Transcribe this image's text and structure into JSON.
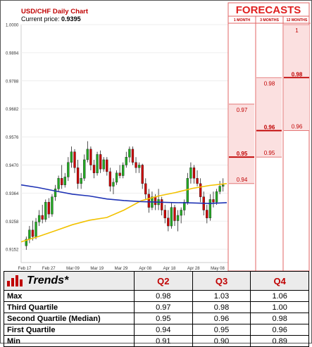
{
  "chart_data": {
    "type": "candlestick",
    "title": "USD/CHF Daily Chart",
    "current_price_label": "Current price:",
    "current_price": "0.9395",
    "y_ticks": [
      "1.0000",
      "0.9894",
      "0.9788",
      "0.9682",
      "0.9576",
      "0.9470",
      "0.9364",
      "0.9258",
      "0.9152"
    ],
    "ylim": [
      0.9102,
      1.0
    ],
    "x_ticks": [
      "Feb 17",
      "Feb 27",
      "Mar 09",
      "Mar 19",
      "Mar 29",
      "Apr 08",
      "Apr 18",
      "Apr 28",
      "May 08"
    ],
    "candles": [
      {
        "o": 0.9165,
        "h": 0.92,
        "l": 0.915,
        "c": 0.919
      },
      {
        "o": 0.919,
        "h": 0.924,
        "l": 0.9175,
        "c": 0.9225
      },
      {
        "o": 0.9225,
        "h": 0.926,
        "l": 0.9185,
        "c": 0.92
      },
      {
        "o": 0.92,
        "h": 0.927,
        "l": 0.919,
        "c": 0.9255
      },
      {
        "o": 0.9255,
        "h": 0.93,
        "l": 0.924,
        "c": 0.928
      },
      {
        "o": 0.928,
        "h": 0.932,
        "l": 0.925,
        "c": 0.9265
      },
      {
        "o": 0.9265,
        "h": 0.934,
        "l": 0.9255,
        "c": 0.933
      },
      {
        "o": 0.933,
        "h": 0.9345,
        "l": 0.927,
        "c": 0.9285
      },
      {
        "o": 0.9285,
        "h": 0.936,
        "l": 0.9275,
        "c": 0.935
      },
      {
        "o": 0.935,
        "h": 0.9395,
        "l": 0.9335,
        "c": 0.938
      },
      {
        "o": 0.938,
        "h": 0.943,
        "l": 0.937,
        "c": 0.942
      },
      {
        "o": 0.942,
        "h": 0.947,
        "l": 0.938,
        "c": 0.9395
      },
      {
        "o": 0.9395,
        "h": 0.944,
        "l": 0.9385,
        "c": 0.9425
      },
      {
        "o": 0.9425,
        "h": 0.95,
        "l": 0.941,
        "c": 0.948
      },
      {
        "o": 0.948,
        "h": 0.954,
        "l": 0.946,
        "c": 0.952
      },
      {
        "o": 0.952,
        "h": 0.953,
        "l": 0.944,
        "c": 0.946
      },
      {
        "o": 0.946,
        "h": 0.949,
        "l": 0.938,
        "c": 0.94
      },
      {
        "o": 0.94,
        "h": 0.944,
        "l": 0.938,
        "c": 0.942
      },
      {
        "o": 0.942,
        "h": 0.951,
        "l": 0.941,
        "c": 0.949
      },
      {
        "o": 0.949,
        "h": 0.956,
        "l": 0.948,
        "c": 0.953
      },
      {
        "o": 0.953,
        "h": 0.954,
        "l": 0.945,
        "c": 0.947
      },
      {
        "o": 0.947,
        "h": 0.949,
        "l": 0.942,
        "c": 0.944
      },
      {
        "o": 0.944,
        "h": 0.952,
        "l": 0.943,
        "c": 0.951
      },
      {
        "o": 0.951,
        "h": 0.9525,
        "l": 0.944,
        "c": 0.9455
      },
      {
        "o": 0.9455,
        "h": 0.95,
        "l": 0.9445,
        "c": 0.949
      },
      {
        "o": 0.949,
        "h": 0.95,
        "l": 0.943,
        "c": 0.9445
      },
      {
        "o": 0.9445,
        "h": 0.946,
        "l": 0.937,
        "c": 0.939
      },
      {
        "o": 0.939,
        "h": 0.942,
        "l": 0.936,
        "c": 0.9405
      },
      {
        "o": 0.9405,
        "h": 0.945,
        "l": 0.9395,
        "c": 0.944
      },
      {
        "o": 0.944,
        "h": 0.947,
        "l": 0.942,
        "c": 0.943
      },
      {
        "o": 0.943,
        "h": 0.948,
        "l": 0.942,
        "c": 0.947
      },
      {
        "o": 0.947,
        "h": 0.952,
        "l": 0.946,
        "c": 0.95
      },
      {
        "o": 0.95,
        "h": 0.954,
        "l": 0.948,
        "c": 0.953
      },
      {
        "o": 0.953,
        "h": 0.954,
        "l": 0.947,
        "c": 0.948
      },
      {
        "o": 0.948,
        "h": 0.95,
        "l": 0.944,
        "c": 0.946
      },
      {
        "o": 0.946,
        "h": 0.948,
        "l": 0.944,
        "c": 0.947
      },
      {
        "o": 0.947,
        "h": 0.9475,
        "l": 0.938,
        "c": 0.94
      },
      {
        "o": 0.94,
        "h": 0.942,
        "l": 0.934,
        "c": 0.936
      },
      {
        "o": 0.936,
        "h": 0.938,
        "l": 0.929,
        "c": 0.931
      },
      {
        "o": 0.931,
        "h": 0.937,
        "l": 0.93,
        "c": 0.935
      },
      {
        "o": 0.935,
        "h": 0.936,
        "l": 0.93,
        "c": 0.932
      },
      {
        "o": 0.932,
        "h": 0.938,
        "l": 0.93,
        "c": 0.934
      },
      {
        "o": 0.934,
        "h": 0.935,
        "l": 0.928,
        "c": 0.93
      },
      {
        "o": 0.93,
        "h": 0.932,
        "l": 0.925,
        "c": 0.927
      },
      {
        "o": 0.927,
        "h": 0.93,
        "l": 0.922,
        "c": 0.924
      },
      {
        "o": 0.924,
        "h": 0.933,
        "l": 0.923,
        "c": 0.931
      },
      {
        "o": 0.931,
        "h": 0.932,
        "l": 0.924,
        "c": 0.926
      },
      {
        "o": 0.926,
        "h": 0.93,
        "l": 0.922,
        "c": 0.928
      },
      {
        "o": 0.928,
        "h": 0.931,
        "l": 0.925,
        "c": 0.93
      },
      {
        "o": 0.93,
        "h": 0.934,
        "l": 0.928,
        "c": 0.933
      },
      {
        "o": 0.933,
        "h": 0.944,
        "l": 0.932,
        "c": 0.942
      },
      {
        "o": 0.942,
        "h": 0.948,
        "l": 0.94,
        "c": 0.946
      },
      {
        "o": 0.946,
        "h": 0.947,
        "l": 0.94,
        "c": 0.942
      },
      {
        "o": 0.942,
        "h": 0.945,
        "l": 0.939,
        "c": 0.94
      },
      {
        "o": 0.94,
        "h": 0.942,
        "l": 0.933,
        "c": 0.935
      },
      {
        "o": 0.935,
        "h": 0.937,
        "l": 0.928,
        "c": 0.93
      },
      {
        "o": 0.93,
        "h": 0.932,
        "l": 0.925,
        "c": 0.927
      },
      {
        "o": 0.927,
        "h": 0.936,
        "l": 0.926,
        "c": 0.934
      },
      {
        "o": 0.934,
        "h": 0.937,
        "l": 0.931,
        "c": 0.933
      },
      {
        "o": 0.933,
        "h": 0.938,
        "l": 0.932,
        "c": 0.937
      },
      {
        "o": 0.937,
        "h": 0.941,
        "l": 0.936,
        "c": 0.939
      },
      {
        "o": 0.939,
        "h": 0.942,
        "l": 0.937,
        "c": 0.9395
      }
    ],
    "ma_fast": [
      0.918,
      0.92,
      0.9222,
      0.9245,
      0.9262,
      0.9272,
      0.93,
      0.9335,
      0.9353,
      0.9366,
      0.9382,
      0.9393,
      0.94
    ],
    "ma_slow": [
      0.9395,
      0.9385,
      0.9372,
      0.936,
      0.9353,
      0.9342,
      0.9336,
      0.9332,
      0.933,
      0.9328,
      0.9327,
      0.9325,
      0.9328
    ],
    "colors": {
      "up": "#22aa22",
      "down": "#cc0000",
      "ma_fast": "#f2c200",
      "ma_slow": "#1f33b5"
    }
  },
  "forecasts": {
    "title": "FORECASTS",
    "columns": [
      {
        "label": "1 MONTH",
        "price_min": "0.94",
        "price_mid": "0.95",
        "price_max": "0.97",
        "v_min": 0.94,
        "v_mid": 0.95,
        "v_max": 0.97
      },
      {
        "label": "3 MONTHS",
        "price_min": "0.95",
        "price_mid": "0.96",
        "price_max": "0.98",
        "v_min": 0.95,
        "v_mid": 0.96,
        "v_max": 0.98
      },
      {
        "label": "12 MONTHS",
        "price_min": "0.96",
        "price_mid": "0.98",
        "price_max": "1",
        "v_min": 0.96,
        "v_mid": 0.98,
        "v_max": 1.0
      }
    ],
    "colors": {
      "fill": "#fbe0e0",
      "border": "#e06666",
      "mid": "#c00000",
      "title": "#e02020"
    }
  },
  "trends": {
    "title": "Trends*",
    "columns": [
      "Q2",
      "Q3",
      "Q4"
    ],
    "rows": [
      {
        "label": "Max",
        "values": [
          "0.98",
          "1.03",
          "1.06"
        ]
      },
      {
        "label": "Third Quartile",
        "values": [
          "0.97",
          "0.98",
          "1.00"
        ]
      },
      {
        "label": "Second Quartile (Median)",
        "values": [
          "0.95",
          "0.96",
          "0.98"
        ]
      },
      {
        "label": "First Quartile",
        "values": [
          "0.94",
          "0.95",
          "0.96"
        ]
      },
      {
        "label": "Min",
        "values": [
          "0.91",
          "0.90",
          "0.89"
        ]
      }
    ]
  }
}
